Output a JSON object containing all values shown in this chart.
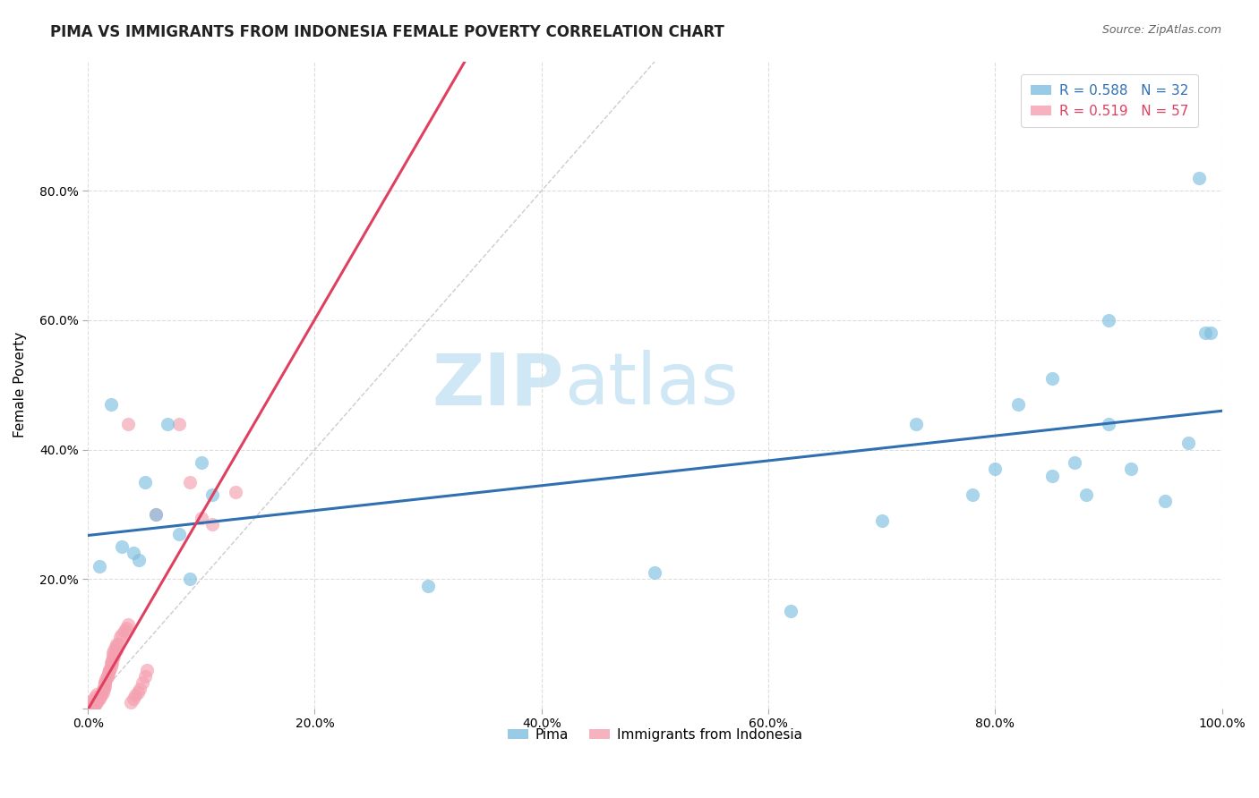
{
  "title": "PIMA VS IMMIGRANTS FROM INDONESIA FEMALE POVERTY CORRELATION CHART",
  "source": "Source: ZipAtlas.com",
  "ylabel": "Female Poverty",
  "xlim": [
    0.0,
    1.0
  ],
  "ylim": [
    0.0,
    1.0
  ],
  "xticks": [
    0.0,
    0.2,
    0.4,
    0.6,
    0.8,
    1.0
  ],
  "yticks": [
    0.0,
    0.2,
    0.4,
    0.6,
    0.8
  ],
  "xtick_labels": [
    "0.0%",
    "20.0%",
    "40.0%",
    "60.0%",
    "80.0%",
    "100.0%"
  ],
  "ytick_labels": [
    "",
    "20.0%",
    "40.0%",
    "60.0%",
    "80.0%"
  ],
  "pima_label": "Pima",
  "indonesia_label": "Immigrants from Indonesia",
  "legend_r1": "R = 0.588",
  "legend_n1": "N = 32",
  "legend_r2": "R = 0.519",
  "legend_n2": "N = 57",
  "pima_color": "#7fbfdf",
  "indonesia_color": "#f4a0b0",
  "trend_pima_color": "#3070b0",
  "trend_indo_color": "#e04060",
  "diag_color": "#cccccc",
  "pima_x": [
    0.01,
    0.02,
    0.03,
    0.04,
    0.045,
    0.05,
    0.06,
    0.07,
    0.08,
    0.09,
    0.1,
    0.11,
    0.3,
    0.5,
    0.62,
    0.7,
    0.73,
    0.78,
    0.8,
    0.82,
    0.85,
    0.85,
    0.87,
    0.88,
    0.9,
    0.9,
    0.92,
    0.95,
    0.97,
    0.98,
    0.985,
    0.99
  ],
  "pima_y": [
    0.22,
    0.47,
    0.25,
    0.24,
    0.23,
    0.35,
    0.3,
    0.44,
    0.27,
    0.2,
    0.38,
    0.33,
    0.19,
    0.21,
    0.15,
    0.29,
    0.44,
    0.33,
    0.37,
    0.47,
    0.36,
    0.51,
    0.38,
    0.33,
    0.6,
    0.44,
    0.37,
    0.32,
    0.41,
    0.82,
    0.58,
    0.58
  ],
  "indo_x": [
    0.005,
    0.008,
    0.01,
    0.012,
    0.013,
    0.014,
    0.015,
    0.015,
    0.016,
    0.017,
    0.018,
    0.019,
    0.02,
    0.02,
    0.021,
    0.022,
    0.022,
    0.023,
    0.024,
    0.025,
    0.006,
    0.007,
    0.009,
    0.011,
    0.013,
    0.015,
    0.017,
    0.019,
    0.021,
    0.023,
    0.025,
    0.027,
    0.028,
    0.03,
    0.032,
    0.034,
    0.035,
    0.038,
    0.04,
    0.042,
    0.044,
    0.046,
    0.048,
    0.05,
    0.052,
    0.002,
    0.003,
    0.004,
    0.006,
    0.008,
    0.035,
    0.06,
    0.08,
    0.09,
    0.1,
    0.11,
    0.13
  ],
  "indo_y": [
    0.005,
    0.01,
    0.015,
    0.02,
    0.025,
    0.03,
    0.035,
    0.04,
    0.045,
    0.05,
    0.055,
    0.06,
    0.065,
    0.07,
    0.075,
    0.08,
    0.085,
    0.09,
    0.095,
    0.1,
    0.005,
    0.01,
    0.015,
    0.02,
    0.03,
    0.04,
    0.05,
    0.06,
    0.07,
    0.08,
    0.09,
    0.1,
    0.11,
    0.115,
    0.12,
    0.125,
    0.13,
    0.01,
    0.015,
    0.02,
    0.025,
    0.03,
    0.04,
    0.05,
    0.06,
    0.003,
    0.007,
    0.012,
    0.018,
    0.022,
    0.44,
    0.3,
    0.44,
    0.35,
    0.295,
    0.285,
    0.335
  ],
  "background_color": "#ffffff",
  "grid_color": "#dddddd",
  "watermark_zip": "ZIP",
  "watermark_atlas": "atlas",
  "watermark_color": "#d0e8f5",
  "watermark_fontsize": 58,
  "title_fontsize": 12,
  "source_fontsize": 9,
  "axis_label_fontsize": 11,
  "tick_fontsize": 10,
  "legend_fontsize": 11,
  "scatter_size": 120,
  "scatter_alpha": 0.65,
  "trend_linewidth": 2.2
}
